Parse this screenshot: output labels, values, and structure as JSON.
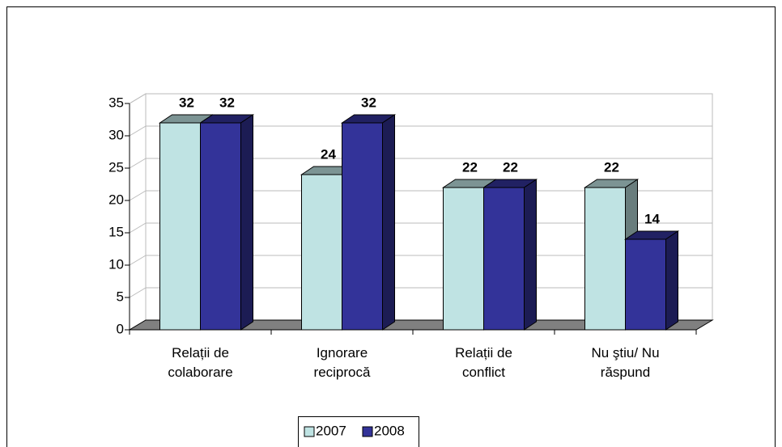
{
  "chart_data": {
    "type": "bar3d",
    "categories": [
      "Relații de colaborare",
      "Ignorare reciprocă",
      "Relații de conflict",
      "Nu ştiu/ Nu răspund"
    ],
    "series": [
      {
        "name": "2007",
        "color": "#bfe3e3",
        "values": [
          32,
          24,
          22,
          22
        ]
      },
      {
        "name": "2008",
        "color": "#333399",
        "values": [
          32,
          32,
          22,
          14
        ]
      }
    ],
    "ylim": [
      0,
      35
    ],
    "yticks": [
      0,
      5,
      10,
      15,
      20,
      25,
      30,
      35
    ],
    "grid": true,
    "legend": "bottom"
  }
}
